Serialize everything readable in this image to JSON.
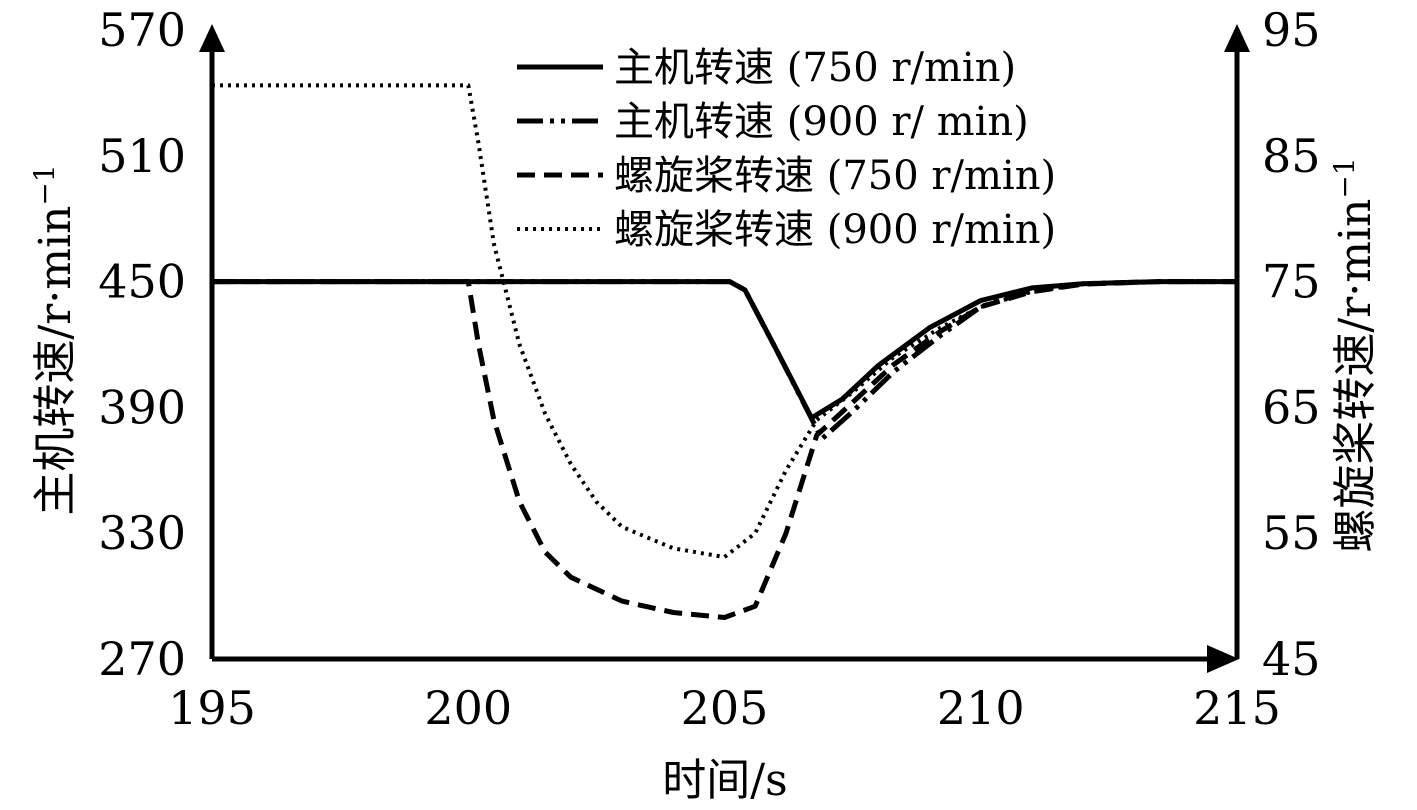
{
  "chart_data": {
    "type": "line",
    "xlabel": "时间/s",
    "ylabel_left": "主机转速/r·min",
    "ylabel_left_sup": "−1",
    "ylabel_right": "螺旋桨转速/r·min",
    "ylabel_right_sup": "−1",
    "xlim": [
      195,
      215
    ],
    "ylim_left": [
      270,
      570
    ],
    "ylim_right": [
      45,
      95
    ],
    "x_ticks": [
      "195",
      "200",
      "205",
      "210",
      "215"
    ],
    "y_left_ticks": [
      "270",
      "330",
      "390",
      "450",
      "510",
      "570"
    ],
    "y_right_ticks": [
      "45",
      "55",
      "65",
      "75",
      "85",
      "95"
    ],
    "legend_position": "top-center",
    "grid": false,
    "series": [
      {
        "name": "主机转速 (750 r/min)",
        "axis": "left",
        "style": "solid",
        "points": [
          [
            195,
            450
          ],
          [
            205.1,
            450
          ],
          [
            205.4,
            446
          ],
          [
            206.0,
            418
          ],
          [
            206.7,
            385
          ],
          [
            207.3,
            394
          ],
          [
            208.0,
            410
          ],
          [
            209.0,
            428
          ],
          [
            210.0,
            441
          ],
          [
            211.0,
            447
          ],
          [
            212.0,
            449
          ],
          [
            213.5,
            450
          ],
          [
            215,
            450
          ]
        ]
      },
      {
        "name": "主机转速 (900 r/ min)",
        "axis": "left",
        "style": "dash-dot-dot",
        "points": [
          [
            195,
            450
          ],
          [
            205.1,
            450
          ],
          [
            205.4,
            446
          ],
          [
            206.0,
            418
          ],
          [
            206.9,
            375
          ],
          [
            207.5,
            388
          ],
          [
            208.3,
            407
          ],
          [
            209.2,
            424
          ],
          [
            210.0,
            438
          ],
          [
            211.0,
            446
          ],
          [
            212.0,
            449
          ],
          [
            213.5,
            450
          ],
          [
            215,
            450
          ]
        ]
      },
      {
        "name": "螺旋桨转速 (750 r/min)",
        "axis": "right",
        "style": "dashed",
        "points": [
          [
            195,
            75
          ],
          [
            200,
            75
          ],
          [
            200.2,
            70
          ],
          [
            200.5,
            64
          ],
          [
            201.0,
            57.5
          ],
          [
            201.5,
            53.5
          ],
          [
            202.0,
            51.5
          ],
          [
            203.0,
            49.6
          ],
          [
            204.0,
            48.7
          ],
          [
            205.0,
            48.3
          ],
          [
            205.6,
            49.2
          ],
          [
            206.2,
            55
          ],
          [
            206.8,
            62.8
          ],
          [
            207.5,
            65.4
          ],
          [
            208.3,
            68.4
          ],
          [
            209.2,
            71
          ],
          [
            210.0,
            73
          ],
          [
            211.0,
            74.2
          ],
          [
            212.0,
            74.8
          ],
          [
            213.5,
            75
          ],
          [
            215,
            75
          ]
        ]
      },
      {
        "name": "螺旋桨转速 (900 r/min)",
        "axis": "right",
        "style": "dotted",
        "points": [
          [
            195,
            90.6
          ],
          [
            200,
            90.6
          ],
          [
            200.2,
            86
          ],
          [
            200.5,
            78
          ],
          [
            201.0,
            70
          ],
          [
            201.5,
            64.5
          ],
          [
            202.0,
            60.5
          ],
          [
            202.5,
            57.5
          ],
          [
            203.0,
            55.5
          ],
          [
            204.0,
            53.8
          ],
          [
            205.0,
            53.1
          ],
          [
            205.6,
            55
          ],
          [
            206.2,
            60
          ],
          [
            206.8,
            64
          ],
          [
            207.5,
            66.2
          ],
          [
            208.3,
            69
          ],
          [
            209.2,
            71.3
          ],
          [
            210.0,
            73
          ],
          [
            211.0,
            74.2
          ],
          [
            212.0,
            74.8
          ],
          [
            213.5,
            75
          ],
          [
            215,
            75
          ]
        ]
      }
    ]
  }
}
